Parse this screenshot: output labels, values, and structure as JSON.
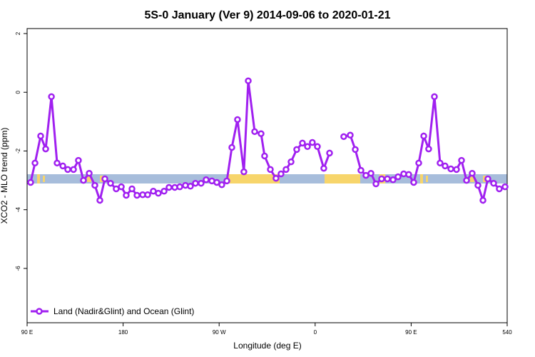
{
  "chart_data": {
    "type": "line",
    "title": "5S-0 January (Ver 9)   2014-09-06 to 2020-01-21",
    "x_label": "Longitude (deg E)",
    "y_label": "XCO2 - MLO trend (ppm)",
    "x": [
      93.3,
      97.4,
      102.7,
      107.4,
      112.8,
      118.1,
      123.5,
      128.1,
      133.5,
      138.1,
      142.8,
      148.2,
      153.5,
      158.2,
      162.9,
      168.2,
      173.5,
      178.3,
      182.9,
      188.3,
      193.0,
      198.3,
      203.0,
      208.3,
      213.0,
      218.4,
      223.0,
      228.4,
      233.1,
      238.4,
      243.1,
      247.8,
      253.1,
      257.8,
      263.2,
      267.8,
      272.5,
      277.2,
      281.9,
      287.2,
      293.2,
      297.3,
      303.3,
      309.3,
      312.6,
      318.0,
      323.3,
      328.0,
      332.7,
      337.4,
      342.7,
      348.1,
      352.8,
      357.4,
      362.1,
      368.1,
      373.5,
      378,
      386.8,
      392.9,
      397.6,
      402.9,
      407.6,
      412.3,
      417.0,
      422.3,
      427.7,
      433.0,
      437.7,
      443.0,
      447.7,
      452.4,
      457.1,
      461.8,
      466.4,
      471.8,
      477.1,
      481.8,
      487.2,
      492.5,
      497.2,
      501.9,
      507.2,
      512.6,
      517.3,
      521.9,
      527.3,
      532.6,
      538.0
    ],
    "series": [
      {
        "name": "Land (Nadir&Glint) and Ocean (Glint)",
        "color": "#a020f0",
        "values": [
          -3.07,
          -2.41,
          -1.49,
          -1.93,
          -0.15,
          -2.41,
          -2.51,
          -2.63,
          -2.63,
          -2.32,
          -3.0,
          -2.76,
          -3.17,
          -3.68,
          -2.95,
          -3.1,
          -3.29,
          -3.22,
          -3.51,
          -3.29,
          -3.51,
          -3.49,
          -3.49,
          -3.37,
          -3.44,
          -3.37,
          -3.24,
          -3.24,
          -3.22,
          -3.17,
          -3.2,
          -3.1,
          -3.1,
          -2.98,
          -3.02,
          -3.07,
          -3.15,
          -3.02,
          -1.88,
          -0.93,
          -2.71,
          0.39,
          -1.34,
          -1.41,
          -2.17,
          -2.63,
          -2.93,
          -2.78,
          -2.63,
          -2.37,
          -1.95,
          -1.73,
          -1.85,
          -1.71,
          -1.85,
          -2.59,
          -2.07,
          null,
          -1.51,
          -1.46,
          -1.95,
          -2.66,
          -2.83,
          -2.76,
          -3.12,
          -2.95,
          -2.95,
          -2.98,
          -2.88,
          -2.78,
          -2.8,
          -3.07,
          -2.41,
          -1.49,
          -1.93,
          -0.15,
          -2.41,
          -2.51,
          -2.61,
          -2.63,
          -2.32,
          -3.0,
          -2.76,
          -3.17,
          -3.68,
          -2.95,
          -3.1,
          -3.29,
          -3.22
        ]
      }
    ],
    "xlim": [
      90,
      540
    ],
    "xticks": [
      {
        "value": 90,
        "label": "90 E"
      },
      180,
      {
        "value": 270,
        "label": "90 W"
      },
      {
        "value": 360,
        "label": "0"
      },
      {
        "value": 450,
        "label": "90 E"
      },
      540
    ],
    "ylim": [
      -7.85,
      2.17
    ],
    "yticks": [
      2,
      0,
      -2,
      -4,
      -6
    ],
    "legend": "bottom-left"
  }
}
